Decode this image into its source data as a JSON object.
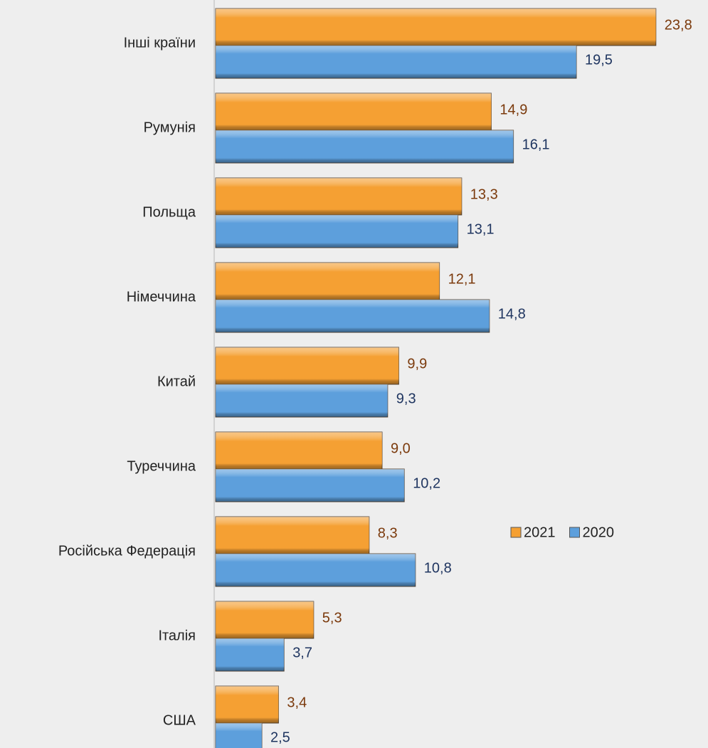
{
  "chart_data": {
    "type": "bar",
    "orientation": "horizontal",
    "categories": [
      "Інші країни",
      "Румунія",
      "Польща",
      "Німеччина",
      "Китай",
      "Туреччина",
      "Російська Федерація",
      "Італія",
      "США"
    ],
    "series": [
      {
        "name": "2021",
        "color": "#f5a033",
        "label_color": "#7b3a0c",
        "values": [
          23.8,
          14.9,
          13.3,
          12.1,
          9.9,
          9.0,
          8.3,
          5.3,
          3.4
        ],
        "value_labels": [
          "23,8",
          "14,9",
          "13,3",
          "12,1",
          "9,9",
          "9,0",
          "8,3",
          "5,3",
          "3,4"
        ]
      },
      {
        "name": "2020",
        "color": "#5d9fdc",
        "label_color": "#1f3560",
        "values": [
          19.5,
          16.1,
          13.1,
          14.8,
          9.3,
          10.2,
          10.8,
          3.7,
          2.5
        ],
        "value_labels": [
          "19,5",
          "16,1",
          "13,1",
          "14,8",
          "9,3",
          "10,2",
          "10,8",
          "3,7",
          "2,5"
        ]
      }
    ],
    "xlim": [
      0,
      25
    ],
    "legend": "bottom-right"
  }
}
